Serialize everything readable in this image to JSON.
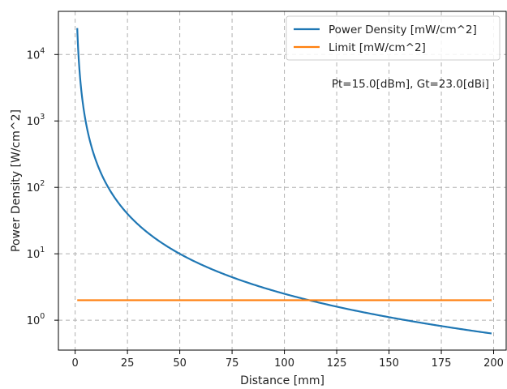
{
  "chart_data": {
    "type": "line",
    "title": "",
    "xlabel": "Distance [mm]",
    "ylabel": "Power Density [W/cm^2]",
    "xlim": [
      -8,
      206
    ],
    "ylim_log10": [
      -0.45,
      4.65
    ],
    "yscale": "log",
    "grid": true,
    "legend_position": "top-right",
    "x_ticks": [
      0,
      25,
      50,
      75,
      100,
      125,
      150,
      175,
      200
    ],
    "y_ticks": [
      {
        "exp": 0,
        "label_base": "10",
        "label_exp": "0"
      },
      {
        "exp": 1,
        "label_base": "10",
        "label_exp": "1"
      },
      {
        "exp": 2,
        "label_base": "10",
        "label_exp": "2"
      },
      {
        "exp": 3,
        "label_base": "10",
        "label_exp": "3"
      },
      {
        "exp": 4,
        "label_base": "10",
        "label_exp": "4"
      }
    ],
    "annotation": "Pt=15.0[dBm], Gt=23.0[dBi]",
    "series": [
      {
        "name": "Power Density [mW/cm^2]",
        "color": "#1f77b4",
        "x": [
          1,
          1.5,
          2,
          3,
          4,
          5,
          6,
          8,
          10,
          12,
          15,
          20,
          25,
          30,
          40,
          50,
          60,
          75,
          100,
          125,
          150,
          175,
          199
        ],
        "y": [
          25000,
          11100,
          6250,
          2780,
          1560,
          1000,
          694,
          391,
          250,
          174,
          111,
          62.5,
          40,
          27.8,
          15.6,
          10,
          6.94,
          4.44,
          2.5,
          1.6,
          1.11,
          0.816,
          0.63
        ]
      },
      {
        "name": "Limit [mW/cm^2]",
        "color": "#ff7f0e",
        "x": [
          1,
          199
        ],
        "y": [
          2,
          2
        ]
      }
    ]
  }
}
